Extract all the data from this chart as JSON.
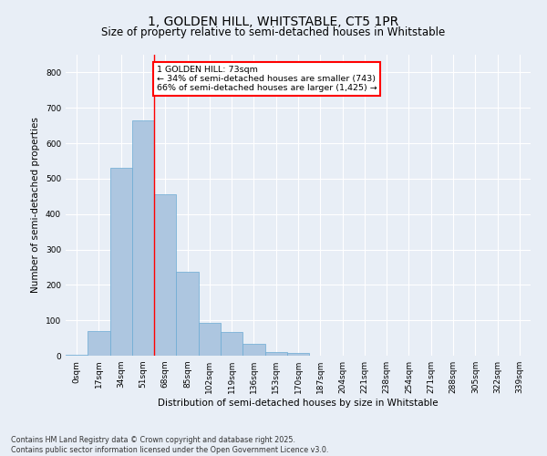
{
  "title": "1, GOLDEN HILL, WHITSTABLE, CT5 1PR",
  "subtitle": "Size of property relative to semi-detached houses in Whitstable",
  "xlabel": "Distribution of semi-detached houses by size in Whitstable",
  "ylabel": "Number of semi-detached properties",
  "bar_color": "#adc6e0",
  "bar_edge_color": "#6aaad4",
  "background_color": "#e8eef6",
  "grid_color": "#ffffff",
  "categories": [
    "0sqm",
    "17sqm",
    "34sqm",
    "51sqm",
    "68sqm",
    "85sqm",
    "102sqm",
    "119sqm",
    "136sqm",
    "153sqm",
    "170sqm",
    "187sqm",
    "204sqm",
    "221sqm",
    "238sqm",
    "254sqm",
    "271sqm",
    "288sqm",
    "305sqm",
    "322sqm",
    "339sqm"
  ],
  "values": [
    2,
    70,
    530,
    665,
    455,
    237,
    93,
    68,
    33,
    10,
    8,
    0,
    0,
    0,
    0,
    0,
    0,
    0,
    0,
    0,
    0
  ],
  "ylim": [
    0,
    850
  ],
  "yticks": [
    0,
    100,
    200,
    300,
    400,
    500,
    600,
    700,
    800
  ],
  "property_line_x": 4.0,
  "annotation_title": "1 GOLDEN HILL: 73sqm",
  "annotation_line1": "← 34% of semi-detached houses are smaller (743)",
  "annotation_line2": "66% of semi-detached houses are larger (1,425) →",
  "footer_line1": "Contains HM Land Registry data © Crown copyright and database right 2025.",
  "footer_line2": "Contains public sector information licensed under the Open Government Licence v3.0.",
  "title_fontsize": 10,
  "subtitle_fontsize": 8.5,
  "axis_label_fontsize": 7.5,
  "tick_fontsize": 6.5,
  "annotation_fontsize": 6.8,
  "footer_fontsize": 5.8
}
